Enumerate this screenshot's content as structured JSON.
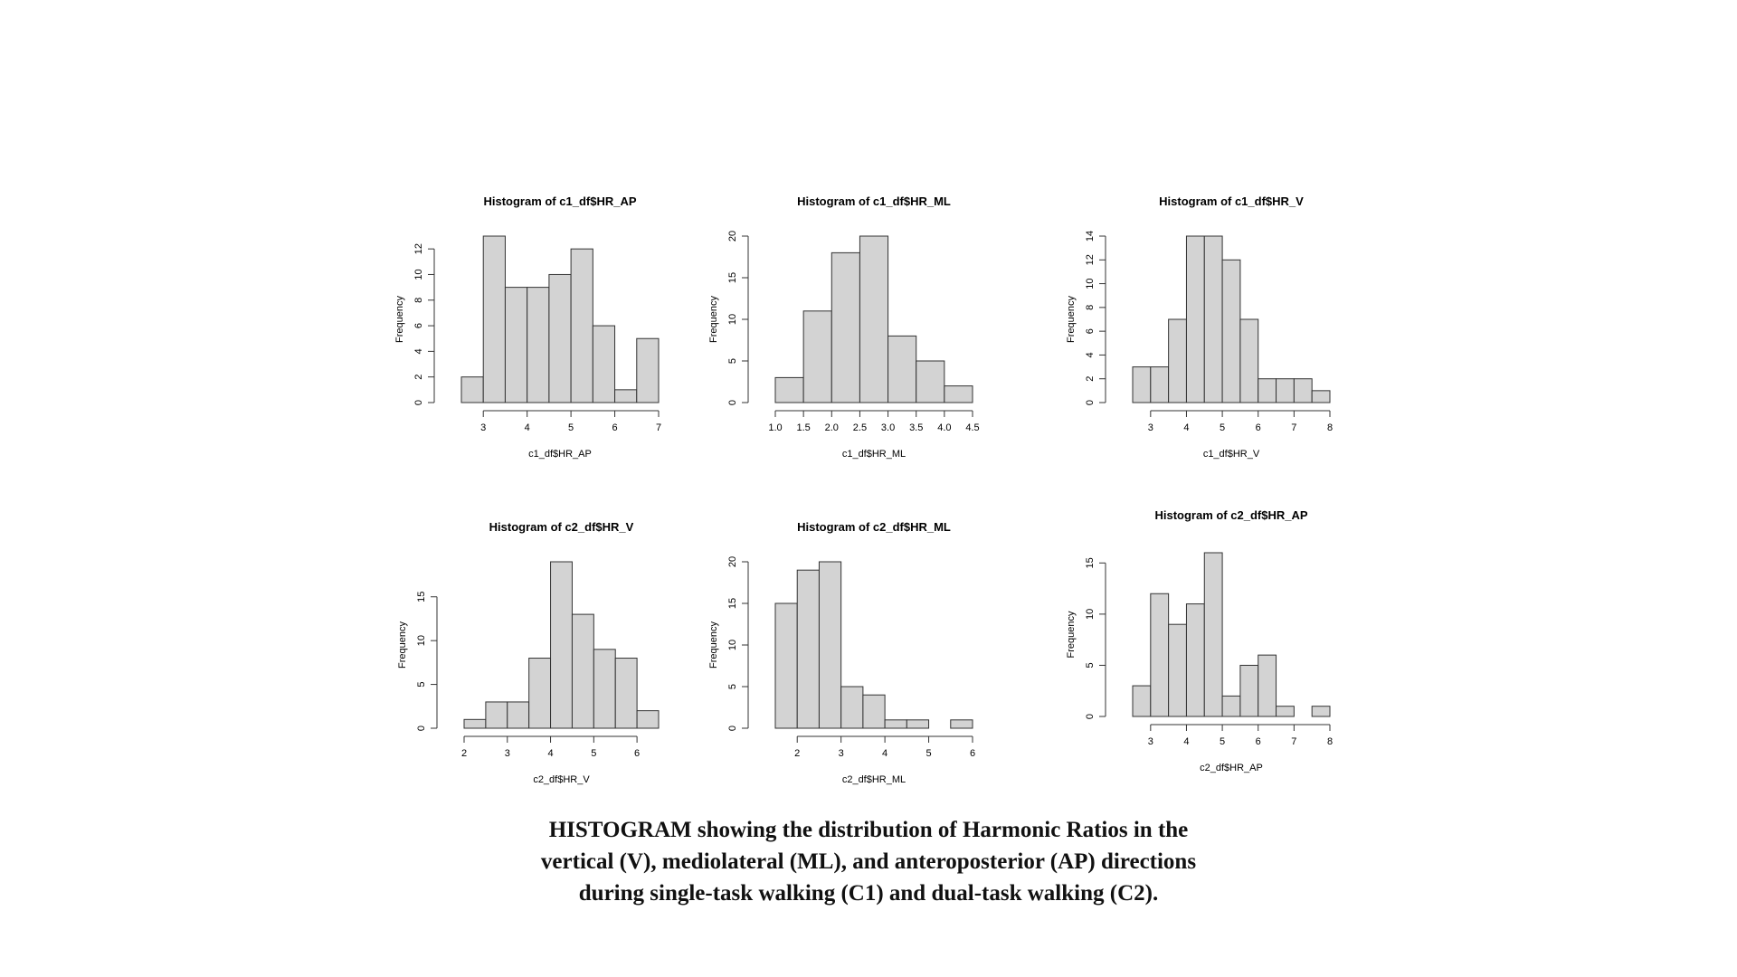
{
  "caption": {
    "line1": "HISTOGRAM showing the distribution of Harmonic Ratios in the",
    "line2": "vertical (V), mediolateral (ML), and anteroposterior (AP) directions",
    "line3": "during single-task walking (C1) and dual-task walking (C2)."
  },
  "colors": {
    "bar_fill": "#d3d3d3",
    "bar_stroke": "#333333",
    "axis": "#333333",
    "text": "#000000"
  },
  "chart_data": [
    {
      "type": "bar",
      "title": "Histogram of c1_df$HR_AP",
      "xlabel": "c1_df$HR_AP",
      "ylabel": "Frequency",
      "bin_width": 0.5,
      "x_start": 2.5,
      "values": [
        2,
        13,
        9,
        9,
        10,
        12,
        6,
        1,
        5
      ],
      "xticks": [
        3,
        4,
        5,
        6,
        7
      ],
      "xtick_labels": [
        "3",
        "4",
        "5",
        "6",
        "7"
      ],
      "yticks": [
        0,
        2,
        4,
        6,
        8,
        10,
        12
      ],
      "yticks_labels": [
        "0",
        "2",
        "4",
        "6",
        "8",
        "10",
        "12"
      ],
      "xlim": [
        2.5,
        7
      ],
      "ylim": [
        0,
        13
      ]
    },
    {
      "type": "bar",
      "title": "Histogram of c1_df$HR_ML",
      "xlabel": "c1_df$HR_ML",
      "ylabel": "Frequency",
      "bin_width": 0.5,
      "x_start": 1.0,
      "values": [
        3,
        11,
        18,
        20,
        8,
        5,
        2
      ],
      "xticks": [
        1.0,
        1.5,
        2.0,
        2.5,
        3.0,
        3.5,
        4.0,
        4.5
      ],
      "xtick_labels": [
        "1.0",
        "1.5",
        "2.0",
        "2.5",
        "3.0",
        "3.5",
        "4.0",
        "4.5"
      ],
      "yticks": [
        0,
        5,
        10,
        15,
        20
      ],
      "yticks_labels": [
        "0",
        "5",
        "10",
        "15",
        "20"
      ],
      "xlim": [
        1.0,
        4.5
      ],
      "ylim": [
        0,
        20
      ]
    },
    {
      "type": "bar",
      "title": "Histogram of c1_df$HR_V",
      "xlabel": "c1_df$HR_V",
      "ylabel": "Frequency",
      "bin_width": 0.5,
      "x_start": 2.5,
      "values": [
        3,
        3,
        7,
        14,
        14,
        12,
        7,
        2,
        2,
        2,
        1
      ],
      "xticks": [
        3,
        4,
        5,
        6,
        7,
        8
      ],
      "xtick_labels": [
        "3",
        "4",
        "5",
        "6",
        "7",
        "8"
      ],
      "yticks": [
        0,
        2,
        4,
        6,
        8,
        10,
        12,
        14
      ],
      "yticks_labels": [
        "0",
        "2",
        "4",
        "6",
        "8",
        "10",
        "12",
        "14"
      ],
      "xlim": [
        2.5,
        8
      ],
      "ylim": [
        0,
        14
      ]
    },
    {
      "type": "bar",
      "title": "Histogram of c2_df$HR_V",
      "xlabel": "c2_df$HR_V",
      "ylabel": "Frequency",
      "bin_width": 0.5,
      "x_start": 2.0,
      "values": [
        1,
        3,
        3,
        8,
        19,
        13,
        9,
        8,
        2
      ],
      "xticks": [
        2,
        3,
        4,
        5,
        6
      ],
      "xtick_labels": [
        "2",
        "3",
        "4",
        "5",
        "6"
      ],
      "yticks": [
        0,
        5,
        10,
        15
      ],
      "yticks_labels": [
        "0",
        "5",
        "10",
        "15"
      ],
      "xlim": [
        2,
        6.5
      ],
      "ylim": [
        0,
        19
      ]
    },
    {
      "type": "bar",
      "title": "Histogram of c2_df$HR_ML",
      "xlabel": "c2_df$HR_ML",
      "ylabel": "Frequency",
      "bin_width": 0.5,
      "x_start": 1.5,
      "values": [
        15,
        19,
        20,
        5,
        4,
        1,
        1,
        0,
        1
      ],
      "xticks": [
        2,
        3,
        4,
        5,
        6
      ],
      "xtick_labels": [
        "2",
        "3",
        "4",
        "5",
        "6"
      ],
      "yticks": [
        0,
        5,
        10,
        15,
        20
      ],
      "yticks_labels": [
        "0",
        "5",
        "10",
        "15",
        "20"
      ],
      "xlim": [
        1.5,
        6
      ],
      "ylim": [
        0,
        20
      ]
    },
    {
      "type": "bar",
      "title": "Histogram of c2_df$HR_AP",
      "xlabel": "c2_df$HR_AP",
      "ylabel": "Frequency",
      "bin_width": 0.5,
      "x_start": 2.5,
      "values": [
        3,
        12,
        9,
        11,
        16,
        2,
        5,
        6,
        1,
        0,
        1
      ],
      "xticks": [
        3,
        4,
        5,
        6,
        7,
        8
      ],
      "xtick_labels": [
        "3",
        "4",
        "5",
        "6",
        "7",
        "8"
      ],
      "yticks": [
        0,
        5,
        10,
        15
      ],
      "yticks_labels": [
        "0",
        "5",
        "10",
        "15"
      ],
      "xlim": [
        2.5,
        8
      ],
      "ylim": [
        0,
        16
      ]
    }
  ]
}
